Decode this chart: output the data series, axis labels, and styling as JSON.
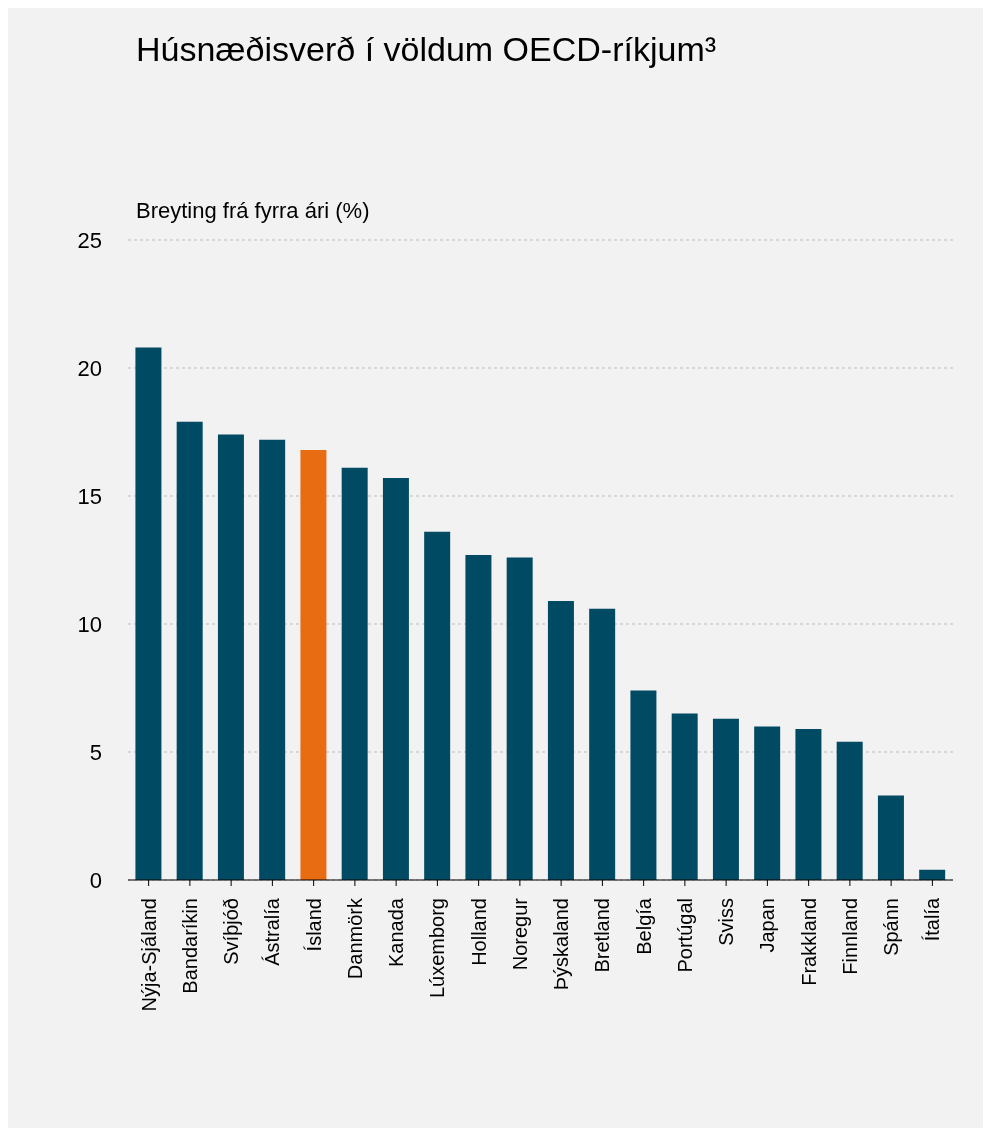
{
  "chart_data": {
    "type": "bar",
    "title": "Húsnæðisverð í völdum OECD-ríkjum³",
    "ylabel": "Breyting frá fyrra ári (%)",
    "categories": [
      "Nýja-Sjáland",
      "Bandaríkin",
      "Svíþjóð",
      "Ástralía",
      "Ísland",
      "Danmörk",
      "Kanada",
      "Lúxemborg",
      "Holland",
      "Noregur",
      "Þýskaland",
      "Bretland",
      "Belgía",
      "Portúgal",
      "Sviss",
      "Japan",
      "Frakkland",
      "Finnland",
      "Spánn",
      "Ítalía"
    ],
    "values": [
      20.8,
      17.9,
      17.4,
      17.2,
      16.8,
      16.1,
      15.7,
      13.6,
      12.7,
      12.6,
      10.9,
      10.6,
      7.4,
      6.5,
      6.3,
      6.0,
      5.9,
      5.4,
      3.3,
      0.4
    ],
    "colors": [
      "#004a63",
      "#004a63",
      "#004a63",
      "#004a63",
      "#e86c12",
      "#004a63",
      "#004a63",
      "#004a63",
      "#004a63",
      "#004a63",
      "#004a63",
      "#004a63",
      "#004a63",
      "#004a63",
      "#004a63",
      "#004a63",
      "#004a63",
      "#004a63",
      "#004a63",
      "#004a63"
    ],
    "ylim": [
      0,
      25
    ],
    "yticks": [
      0,
      5,
      10,
      15,
      20,
      25
    ],
    "grid": "y"
  }
}
